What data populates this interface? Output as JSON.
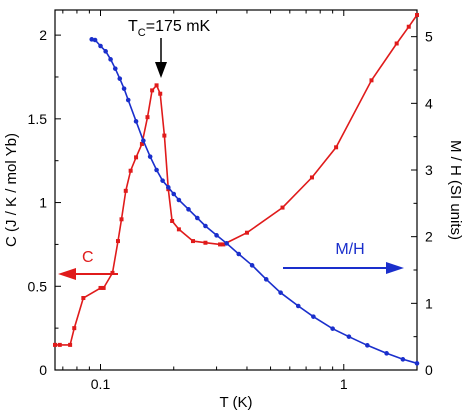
{
  "chart_data": {
    "type": "line",
    "x_scale": "log",
    "xlim": [
      0.065,
      2.0
    ],
    "xlabel": "T (K)",
    "x_ticks": [
      {
        "value": 0.1,
        "label": "0.1"
      },
      {
        "value": 1,
        "label": "1"
      }
    ],
    "left_axis": {
      "label": "C (J / K / mol Yb)",
      "ylim": [
        0,
        2.15
      ],
      "ticks": [
        {
          "value": 0,
          "label": "0"
        },
        {
          "value": 0.5,
          "label": "0.5"
        },
        {
          "value": 1,
          "label": "1"
        },
        {
          "value": 1.5,
          "label": "1.5"
        },
        {
          "value": 2,
          "label": "2"
        }
      ]
    },
    "right_axis": {
      "label": "M / H (SI units)",
      "ylim": [
        0,
        5.4
      ],
      "ticks": [
        {
          "value": 0,
          "label": "0"
        },
        {
          "value": 1,
          "label": "1"
        },
        {
          "value": 2,
          "label": "2"
        },
        {
          "value": 3,
          "label": "3"
        },
        {
          "value": 4,
          "label": "4"
        },
        {
          "value": 5,
          "label": "5"
        }
      ]
    },
    "colors": {
      "c": "#e01b1b",
      "mh": "#1a2fcc",
      "annotation": "#000000"
    },
    "series": [
      {
        "name": "C",
        "axis": "left",
        "x": [
          0.065,
          0.068,
          0.075,
          0.078,
          0.085,
          0.1,
          0.103,
          0.112,
          0.118,
          0.122,
          0.127,
          0.133,
          0.14,
          0.148,
          0.156,
          0.163,
          0.17,
          0.176,
          0.183,
          0.19,
          0.197,
          0.21,
          0.24,
          0.27,
          0.31,
          0.32,
          0.4,
          0.56,
          0.74,
          0.93,
          1.3,
          1.65,
          1.85,
          2.0
        ],
        "values": [
          0.15,
          0.15,
          0.15,
          0.25,
          0.43,
          0.49,
          0.49,
          0.58,
          0.77,
          0.9,
          1.07,
          1.19,
          1.27,
          1.35,
          1.51,
          1.67,
          1.7,
          1.65,
          1.4,
          1.08,
          0.89,
          0.84,
          0.77,
          0.76,
          0.75,
          0.75,
          0.82,
          0.97,
          1.15,
          1.33,
          1.73,
          1.95,
          2.05,
          2.12
        ]
      },
      {
        "name": "M/H",
        "axis": "right",
        "x": [
          0.092,
          0.095,
          0.1,
          0.105,
          0.11,
          0.115,
          0.12,
          0.125,
          0.13,
          0.14,
          0.15,
          0.16,
          0.17,
          0.18,
          0.19,
          0.2,
          0.21,
          0.23,
          0.25,
          0.27,
          0.3,
          0.33,
          0.37,
          0.42,
          0.48,
          0.55,
          0.65,
          0.75,
          0.9,
          1.05,
          1.25,
          1.5,
          1.75,
          2.0
        ],
        "values": [
          4.96,
          4.95,
          4.86,
          4.78,
          4.66,
          4.52,
          4.37,
          4.22,
          4.05,
          3.73,
          3.44,
          3.2,
          3.0,
          2.84,
          2.74,
          2.64,
          2.55,
          2.41,
          2.28,
          2.16,
          2.02,
          1.9,
          1.74,
          1.57,
          1.36,
          1.16,
          0.96,
          0.8,
          0.62,
          0.5,
          0.37,
          0.25,
          0.16,
          0.1
        ]
      }
    ],
    "annotations": {
      "tc_label": "T",
      "tc_sub": "C",
      "tc_value": "=175 mK",
      "c_label": "C",
      "mh_label": "M/H"
    }
  }
}
